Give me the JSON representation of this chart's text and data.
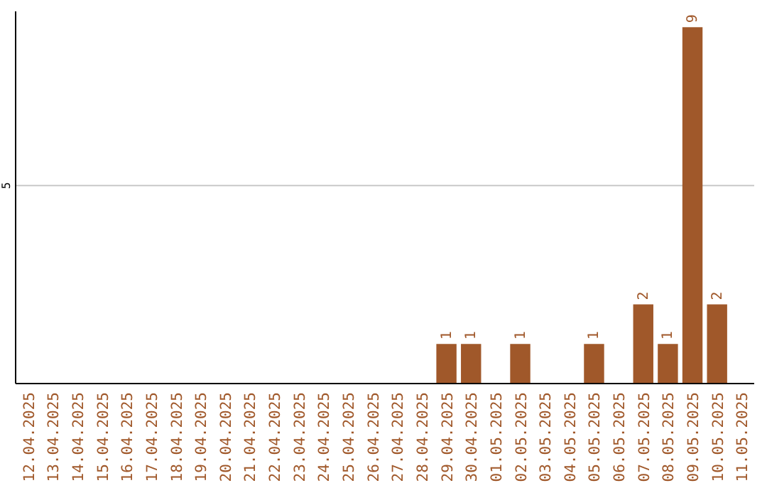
{
  "chart_data": {
    "type": "bar",
    "categories": [
      "12.04.2025",
      "13.04.2025",
      "14.04.2025",
      "15.04.2025",
      "16.04.2025",
      "17.04.2025",
      "18.04.2025",
      "19.04.2025",
      "20.04.2025",
      "21.04.2025",
      "22.04.2025",
      "23.04.2025",
      "24.04.2025",
      "25.04.2025",
      "26.04.2025",
      "27.04.2025",
      "28.04.2025",
      "29.04.2025",
      "30.04.2025",
      "01.05.2025",
      "02.05.2025",
      "03.05.2025",
      "04.05.2025",
      "05.05.2025",
      "06.05.2025",
      "07.05.2025",
      "08.05.2025",
      "09.05.2025",
      "10.05.2025",
      "11.05.2025"
    ],
    "values": [
      null,
      null,
      null,
      null,
      null,
      null,
      null,
      null,
      null,
      null,
      null,
      null,
      null,
      null,
      null,
      null,
      null,
      1,
      1,
      null,
      1,
      null,
      null,
      1,
      null,
      2,
      1,
      9,
      2,
      null
    ],
    "color": "#a0582a",
    "ylim": [
      0,
      9.4
    ],
    "yticks": [
      5
    ],
    "grid": "y",
    "data_labels": true
  }
}
